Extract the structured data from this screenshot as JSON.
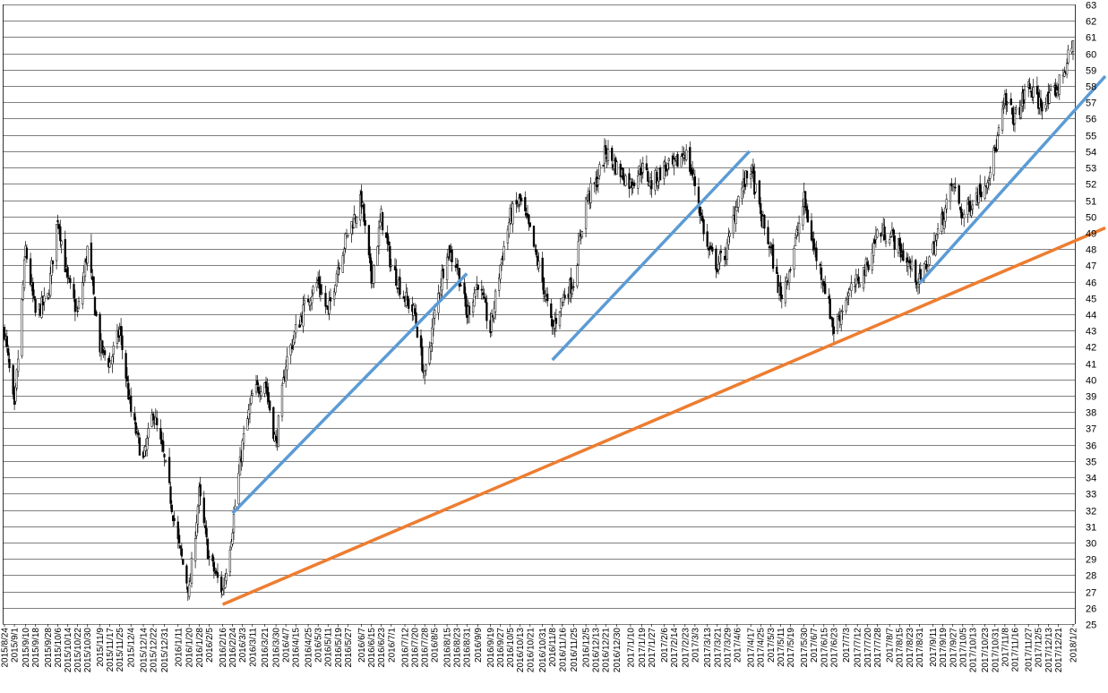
{
  "chart_data": {
    "type": "candlestick",
    "title": "",
    "xlabel": "",
    "ylabel": "",
    "ylim": [
      25,
      63
    ],
    "y_ticks": [
      25,
      26,
      27,
      28,
      29,
      30,
      31,
      32,
      33,
      34,
      35,
      36,
      37,
      38,
      39,
      40,
      41,
      42,
      43,
      44,
      45,
      46,
      47,
      48,
      49,
      50,
      51,
      52,
      53,
      54,
      55,
      56,
      57,
      58,
      59,
      60,
      61,
      62,
      63
    ],
    "y_axis_side": "right",
    "grid": "horizontal",
    "x_range": [
      "2015/8/24",
      "2018/1/2"
    ],
    "x_ticks": [
      "2015/8/24",
      "2015/9/1",
      "2015/9/10",
      "2015/9/18",
      "2015/9/28",
      "2015/10/6",
      "2015/10/14",
      "2015/10/22",
      "2015/10/30",
      "2015/11/9",
      "2015/11/17",
      "2015/11/25",
      "2015/12/4",
      "2015/12/14",
      "2015/12/22",
      "2015/12/31",
      "2016/1/11",
      "2016/1/20",
      "2016/1/28",
      "2016/2/5",
      "2016/2/16",
      "2016/2/24",
      "2016/3/3",
      "2016/3/11",
      "2016/3/21",
      "2016/3/30",
      "2016/4/7",
      "2016/4/15",
      "2016/4/25",
      "2016/5/3",
      "2016/5/11",
      "2016/5/19",
      "2016/5/27",
      "2016/6/7",
      "2016/6/15",
      "2016/6/23",
      "2016/7/1",
      "2016/7/12",
      "2016/7/20",
      "2016/7/28",
      "2016/8/5",
      "2016/8/15",
      "2016/8/23",
      "2016/8/31",
      "2016/9/9",
      "2016/9/19",
      "2016/9/27",
      "2016/10/5",
      "2016/10/13",
      "2016/10/21",
      "2016/10/31",
      "2016/11/8",
      "2016/11/16",
      "2016/11/25",
      "2016/12/5",
      "2016/12/13",
      "2016/12/21",
      "2016/12/30",
      "2017/1/10",
      "2017/1/19",
      "2017/1/27",
      "2017/2/6",
      "2017/2/14",
      "2017/2/23",
      "2017/3/3",
      "2017/3/13",
      "2017/3/21",
      "2017/3/29",
      "2017/4/6",
      "2017/4/17",
      "2017/4/25",
      "2017/5/3",
      "2017/5/11",
      "2017/5/19",
      "2017/5/30",
      "2017/6/7",
      "2017/6/15",
      "2017/6/23",
      "2017/7/3",
      "2017/7/12",
      "2017/7/20",
      "2017/7/28",
      "2017/8/7",
      "2017/8/15",
      "2017/8/23",
      "2017/8/31",
      "2017/9/11",
      "2017/9/19",
      "2017/9/27",
      "2017/10/5",
      "2017/10/13",
      "2017/10/23",
      "2017/10/31",
      "2017/11/8",
      "2017/11/16",
      "2017/11/27",
      "2017/12/5",
      "2017/12/13",
      "2017/12/21",
      "2018/1/2"
    ],
    "price_path": [
      [
        "2015/8/24",
        43
      ],
      [
        "2015/9/1",
        38
      ],
      [
        "2015/9/10",
        48
      ],
      [
        "2015/9/18",
        44
      ],
      [
        "2015/9/28",
        45
      ],
      [
        "2015/10/6",
        50
      ],
      [
        "2015/10/14",
        46
      ],
      [
        "2015/10/22",
        44
      ],
      [
        "2015/10/30",
        48
      ],
      [
        "2015/11/9",
        42
      ],
      [
        "2015/11/17",
        41
      ],
      [
        "2015/11/25",
        43
      ],
      [
        "2015/12/4",
        38
      ],
      [
        "2015/12/14",
        35
      ],
      [
        "2015/12/22",
        38
      ],
      [
        "2015/12/31",
        35
      ],
      [
        "2016/1/11",
        30
      ],
      [
        "2016/1/20",
        27
      ],
      [
        "2016/1/28",
        33
      ],
      [
        "2016/2/5",
        29
      ],
      [
        "2016/2/16",
        27
      ],
      [
        "2016/2/24",
        31
      ],
      [
        "2016/3/3",
        36
      ],
      [
        "2016/3/11",
        39
      ],
      [
        "2016/3/21",
        40
      ],
      [
        "2016/3/30",
        36
      ],
      [
        "2016/4/7",
        41
      ],
      [
        "2016/4/15",
        43
      ],
      [
        "2016/4/25",
        45
      ],
      [
        "2016/5/3",
        46
      ],
      [
        "2016/5/11",
        44
      ],
      [
        "2016/5/19",
        47
      ],
      [
        "2016/5/27",
        49
      ],
      [
        "2016/6/7",
        51
      ],
      [
        "2016/6/15",
        46
      ],
      [
        "2016/6/23",
        50
      ],
      [
        "2016/7/1",
        47
      ],
      [
        "2016/7/12",
        45
      ],
      [
        "2016/7/20",
        44
      ],
      [
        "2016/7/28",
        40
      ],
      [
        "2016/8/5",
        44
      ],
      [
        "2016/8/15",
        48
      ],
      [
        "2016/8/23",
        47
      ],
      [
        "2016/8/31",
        44
      ],
      [
        "2016/9/9",
        46
      ],
      [
        "2016/9/19",
        43
      ],
      [
        "2016/9/27",
        47
      ],
      [
        "2016/10/5",
        50
      ],
      [
        "2016/10/13",
        51
      ],
      [
        "2016/10/21",
        49
      ],
      [
        "2016/10/31",
        46
      ],
      [
        "2016/11/8",
        43
      ],
      [
        "2016/11/16",
        45
      ],
      [
        "2016/11/25",
        46
      ],
      [
        "2016/12/5",
        51
      ],
      [
        "2016/12/13",
        52
      ],
      [
        "2016/12/21",
        54
      ],
      [
        "2016/12/30",
        53
      ],
      [
        "2017/1/10",
        52
      ],
      [
        "2017/1/19",
        53
      ],
      [
        "2017/1/27",
        52
      ],
      [
        "2017/2/6",
        53
      ],
      [
        "2017/2/14",
        53
      ],
      [
        "2017/2/23",
        54
      ],
      [
        "2017/3/3",
        52
      ],
      [
        "2017/3/13",
        48
      ],
      [
        "2017/3/21",
        47
      ],
      [
        "2017/3/29",
        48
      ],
      [
        "2017/4/6",
        51
      ],
      [
        "2017/4/17",
        53
      ],
      [
        "2017/4/25",
        50
      ],
      [
        "2017/5/3",
        48
      ],
      [
        "2017/5/11",
        45
      ],
      [
        "2017/5/19",
        47
      ],
      [
        "2017/5/30",
        51
      ],
      [
        "2017/6/7",
        48
      ],
      [
        "2017/6/15",
        46
      ],
      [
        "2017/6/23",
        43
      ],
      [
        "2017/7/3",
        45
      ],
      [
        "2017/7/12",
        46
      ],
      [
        "2017/7/20",
        47
      ],
      [
        "2017/7/28",
        49
      ],
      [
        "2017/8/7",
        49
      ],
      [
        "2017/8/15",
        48
      ],
      [
        "2017/8/23",
        47
      ],
      [
        "2017/8/31",
        46
      ],
      [
        "2017/9/11",
        48
      ],
      [
        "2017/9/19",
        50
      ],
      [
        "2017/9/27",
        52
      ],
      [
        "2017/10/5",
        50
      ],
      [
        "2017/10/13",
        51
      ],
      [
        "2017/10/23",
        52
      ],
      [
        "2017/10/31",
        54
      ],
      [
        "2017/11/8",
        57
      ],
      [
        "2017/11/16",
        56
      ],
      [
        "2017/11/27",
        58
      ],
      [
        "2017/12/5",
        57
      ],
      [
        "2017/12/13",
        57
      ],
      [
        "2017/12/21",
        58
      ],
      [
        "2018/1/2",
        60.5
      ]
    ],
    "trendlines": [
      {
        "color": "#5b9bd5",
        "from": [
          "2016/2/24",
          31.8
        ],
        "to": [
          "2016/8/5",
          46.5
        ]
      },
      {
        "color": "#5b9bd5",
        "from": [
          "2016/11/8",
          41.2
        ],
        "to": [
          "2017/3/21",
          54
        ]
      },
      {
        "color": "#5b9bd5",
        "from": [
          "2017/8/31",
          45.9
        ],
        "to": [
          "2018/1/2",
          58.6
        ]
      },
      {
        "color": "#ed7d31",
        "from": [
          "2016/2/16",
          26.2
        ],
        "to": [
          "2018/1/2",
          49.3
        ]
      }
    ],
    "colors": {
      "candle": "#000000",
      "grid": "#000000",
      "blue_line": "#5b9bd5",
      "orange_line": "#ed7d31"
    }
  }
}
